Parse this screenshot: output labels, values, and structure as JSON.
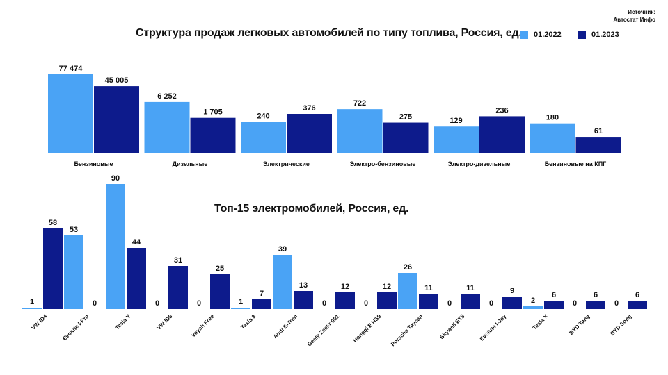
{
  "source": {
    "line1": "Источник:",
    "line2": "Автостат Инфо"
  },
  "legend": {
    "series_a": "01.2022",
    "series_b": "01.2023",
    "color_a": "#4aa3f5",
    "color_b": "#0d1b8c"
  },
  "chart_data": [
    {
      "type": "bar",
      "title": "Структура продаж легковых автомобилей по типу топлива, Россия, ед.",
      "categories": [
        "Бензиновые",
        "Дизельные",
        "Электрические",
        "Электро-бензиновые",
        "Электро-дизельные",
        "Бензиновые на КПГ"
      ],
      "series": [
        {
          "name": "01.2022",
          "values": [
            77474,
            6252,
            240,
            722,
            129,
            180
          ],
          "labels": [
            "77 474",
            "6 252",
            "240",
            "722",
            "129",
            "180"
          ]
        },
        {
          "name": "01.2023",
          "values": [
            45005,
            1705,
            376,
            275,
            236,
            61
          ],
          "labels": [
            "45 005",
            "1 705",
            "376",
            "275",
            "236",
            "61"
          ]
        }
      ],
      "scale": "non-linear (bars not proportional)",
      "bar_level": [
        [
          1.0,
          0.65,
          0.4,
          0.56,
          0.34,
          0.38
        ],
        [
          0.85,
          0.45,
          0.5,
          0.39,
          0.47,
          0.21
        ]
      ]
    },
    {
      "type": "bar",
      "title": "Топ-15 электромобилей, Россия, ед.",
      "categories": [
        "VW ID4",
        "Evolute I-Pro",
        "Tesla Y",
        "VW ID6",
        "Voyah Free",
        "Tesla 3",
        "Audi E-Tron",
        "Geely Zeekr 001",
        "Hongqi E HS9",
        "Porsche Taycan",
        "Skywell ET5",
        "Evolute I-Joy",
        "Tesla X",
        "BYD Tang",
        "BYD Song"
      ],
      "series": [
        {
          "name": "01.2022",
          "values": [
            1,
            53,
            90,
            0,
            0,
            1,
            39,
            0,
            0,
            26,
            0,
            0,
            2,
            0,
            0
          ]
        },
        {
          "name": "01.2023",
          "values": [
            58,
            0,
            44,
            31,
            25,
            7,
            13,
            12,
            12,
            11,
            11,
            9,
            6,
            6,
            6
          ]
        }
      ],
      "ylim": [
        0,
        90
      ]
    }
  ]
}
